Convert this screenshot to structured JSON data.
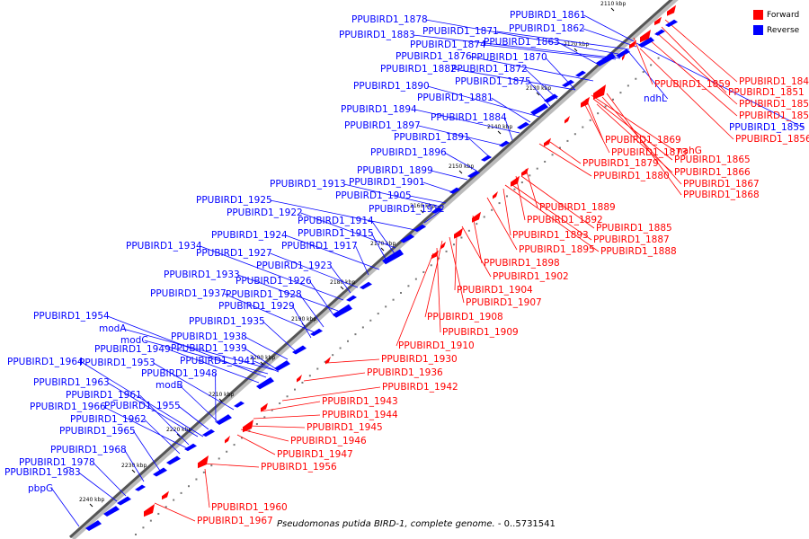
{
  "legend": {
    "forward": {
      "label": "Forward",
      "color": "#ff0000"
    },
    "reverse": {
      "label": "Reverse",
      "color": "#0000ff"
    }
  },
  "caption": {
    "organism": "Pseudomonas putida BIRD-1, complete genome.",
    "range": " - 0..5731541"
  },
  "ticks": [
    "2110 kbp",
    "2120 kbp",
    "2130 kbp",
    "2140 kbp",
    "2150 kbp",
    "2160 kbp",
    "2170 kbp",
    "2180 kbp",
    "2190 kbp",
    "2200 kbp",
    "2210 kbp",
    "2220 kbp",
    "2230 kbp",
    "2240 kbp"
  ],
  "reverse_labels": [
    "PPUBIRD1_1878",
    "PPUBIRD1_1861",
    "PPUBIRD1_1883",
    "PPUBIRD1_1871",
    "PPUBIRD1_1862",
    "PPUBIRD1_1874",
    "PPUBIRD1_1863",
    "PPUBIRD1_1876",
    "PPUBIRD1_1870",
    "PPUBIRD1_1882",
    "PPUBIRD1_1872",
    "PPUBIRD1_1875",
    "PPUBIRD1_1890",
    "PPUBIRD1_1881",
    "PPUBIRD1_1894",
    "PPUBIRD1_1884",
    "PPUBIRD1_1897",
    "PPUBIRD1_1891",
    "PPUBIRD1_1896",
    "PPUBIRD1_1899",
    "PPUBIRD1_1913",
    "PPUBIRD1_1901",
    "PPUBIRD1_1905",
    "PPUBIRD1_1925",
    "PPUBIRD1_1912",
    "PPUBIRD1_1922",
    "PPUBIRD1_1914",
    "PPUBIRD1_1915",
    "PPUBIRD1_1924",
    "PPUBIRD1_1917",
    "PPUBIRD1_1934",
    "PPUBIRD1_1927",
    "PPUBIRD1_1923",
    "PPUBIRD1_1933",
    "PPUBIRD1_1926",
    "PPUBIRD1_1937",
    "PPUBIRD1_1928",
    "PPUBIRD1_1929",
    "PPUBIRD1_1954",
    "PPUBIRD1_1935",
    "modA",
    "modC",
    "PPUBIRD1_1938",
    "PPUBIRD1_1949",
    "PPUBIRD1_1939",
    "PPUBIRD1_1964",
    "PPUBIRD1_1953",
    "PPUBIRD1_1941",
    "PPUBIRD1_1948",
    "PPUBIRD1_1963",
    "modB",
    "PPUBIRD1_1961",
    "PPUBIRD1_1966",
    "PPUBIRD1_1955",
    "PPUBIRD1_1962",
    "PPUBIRD1_1965",
    "PPUBIRD1_1968",
    "PPUBIRD1_1978",
    "PPUBIRD1_1983",
    "pbpG",
    "ndhL",
    "PPUBIRD1_1855"
  ],
  "forward_labels": [
    "PPUBIRD1_1849",
    "PPUBIRD1_1859",
    "PPUBIRD1_1851",
    "PPUBIRD1_1852",
    "PPUBIRD1_1853",
    "PPUBIRD1_1856",
    "PPUBIRD1_1869",
    "nahG",
    "PPUBIRD1_1873",
    "PPUBIRD1_1865",
    "PPUBIRD1_1879",
    "PPUBIRD1_1866",
    "PPUBIRD1_1880",
    "PPUBIRD1_1867",
    "PPUBIRD1_1868",
    "PPUBIRD1_1889",
    "PPUBIRD1_1892",
    "PPUBIRD1_1885",
    "PPUBIRD1_1887",
    "PPUBIRD1_1893",
    "PPUBIRD1_1888",
    "PPUBIRD1_1895",
    "PPUBIRD1_1898",
    "PPUBIRD1_1902",
    "PPUBIRD1_1904",
    "PPUBIRD1_1907",
    "PPUBIRD1_1908",
    "PPUBIRD1_1909",
    "PPUBIRD1_1910",
    "PPUBIRD1_1930",
    "PPUBIRD1_1936",
    "PPUBIRD1_1942",
    "PPUBIRD1_1943",
    "PPUBIRD1_1944",
    "PPUBIRD1_1945",
    "PPUBIRD1_1946",
    "PPUBIRD1_1947",
    "PPUBIRD1_1956",
    "PPUBIRD1_1960",
    "PPUBIRD1_1967"
  ]
}
